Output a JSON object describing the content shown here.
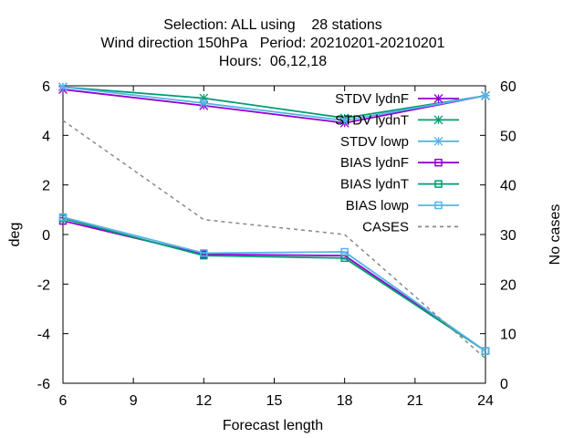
{
  "chart_data": {
    "type": "line",
    "title_lines": [
      "Selection: ALL using    28 stations",
      "Wind direction 150hPa   Period: 20210201-20210201",
      "Hours:  06,12,18"
    ],
    "xlabel": "Forecast length",
    "ylabel": "deg",
    "y2label": "No cases",
    "xlim": [
      6,
      24
    ],
    "ylim": [
      -6,
      6
    ],
    "y2lim": [
      0,
      60
    ],
    "x_ticks": [
      6,
      9,
      12,
      15,
      18,
      21,
      24
    ],
    "y_ticks": [
      -6,
      -4,
      -2,
      0,
      2,
      4,
      6
    ],
    "y2_ticks": [
      0,
      10,
      20,
      30,
      40,
      50,
      60
    ],
    "grid": false,
    "legend_position": "top-right",
    "series": [
      {
        "name": "STDV lydnF",
        "axis": "y",
        "marker": "star",
        "color": "#9400d3",
        "x": [
          6,
          12,
          18,
          24
        ],
        "y": [
          5.85,
          5.2,
          4.5,
          5.6
        ]
      },
      {
        "name": "STDV lydnT",
        "axis": "y",
        "marker": "star",
        "color": "#009e73",
        "x": [
          6,
          12,
          18,
          24
        ],
        "y": [
          5.95,
          5.5,
          4.7,
          5.6
        ]
      },
      {
        "name": "STDV lowp",
        "axis": "y",
        "marker": "star",
        "color": "#56b4e9",
        "x": [
          6,
          12,
          18,
          24
        ],
        "y": [
          5.95,
          5.3,
          4.6,
          5.6
        ]
      },
      {
        "name": "BIAS lydnF",
        "axis": "y",
        "marker": "square",
        "color": "#9400d3",
        "x": [
          6,
          12,
          18,
          24
        ],
        "y": [
          0.55,
          -0.8,
          -0.85,
          -4.7
        ]
      },
      {
        "name": "BIAS lydnT",
        "axis": "y",
        "marker": "square",
        "color": "#009e73",
        "x": [
          6,
          12,
          18,
          24
        ],
        "y": [
          0.65,
          -0.85,
          -0.95,
          -4.7
        ]
      },
      {
        "name": "BIAS lowp",
        "axis": "y",
        "marker": "square",
        "color": "#56b4e9",
        "x": [
          6,
          12,
          18,
          24
        ],
        "y": [
          0.7,
          -0.75,
          -0.7,
          -4.7
        ]
      },
      {
        "name": "CASES",
        "axis": "y2",
        "marker": "none",
        "dashed": true,
        "color": "#888888",
        "x": [
          6,
          12,
          18,
          24
        ],
        "y": [
          53,
          33,
          30,
          5
        ]
      }
    ]
  }
}
